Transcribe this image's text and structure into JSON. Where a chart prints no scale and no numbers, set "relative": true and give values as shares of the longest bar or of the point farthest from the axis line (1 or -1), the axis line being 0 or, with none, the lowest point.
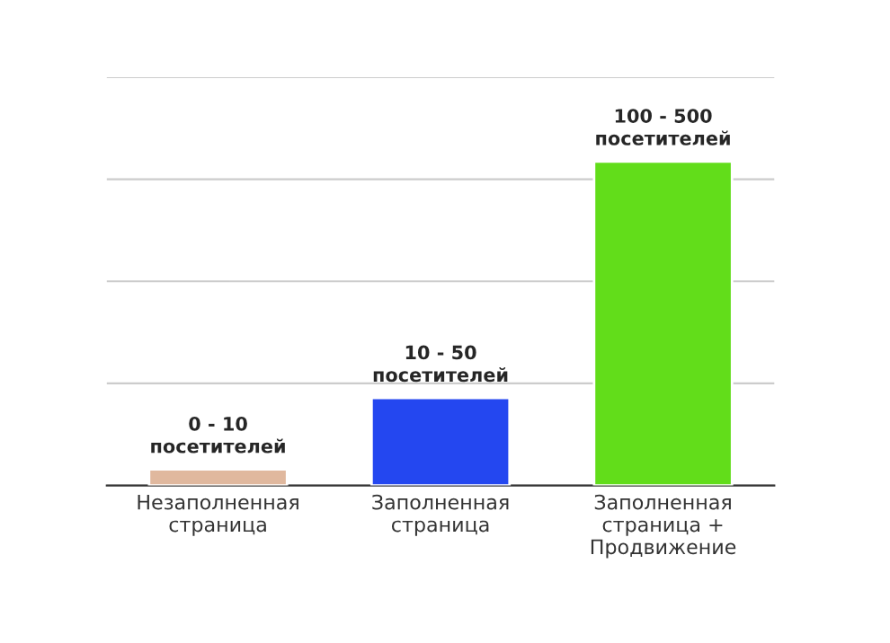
{
  "chart_data": {
    "type": "bar",
    "relative": true,
    "categories": [
      "Незаполненная\nстраница",
      "Заполненная\nстраница",
      "Заполненная\nстраница +\nПродвижение"
    ],
    "values": [
      0.05,
      0.27,
      1
    ],
    "colors": [
      "#e0b89e",
      "#2447f0",
      "#62dd1a"
    ],
    "annotations": [
      "0 - 10\nпосетителей",
      "10 - 50\nпосетителей",
      "100 - 500\nпосетителей"
    ],
    "grid": "y"
  }
}
